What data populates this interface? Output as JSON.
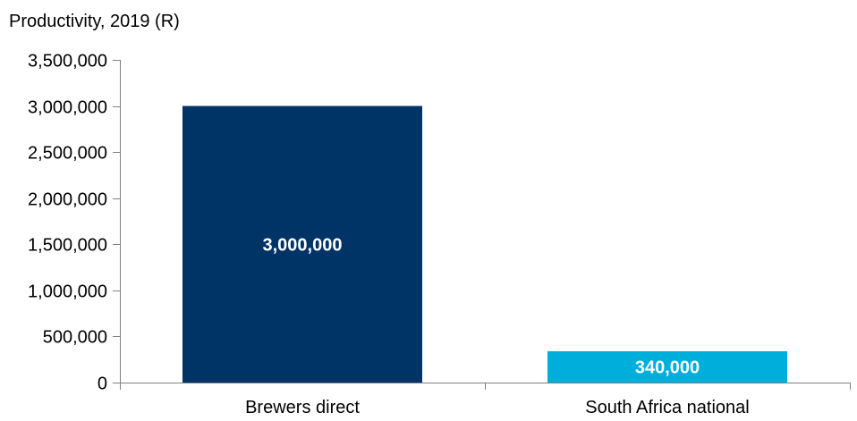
{
  "chart_data": {
    "type": "bar",
    "title": "Productivity, 2019 (R)",
    "xlabel": "",
    "ylabel": "",
    "categories": [
      "Brewers direct",
      "South Africa national"
    ],
    "values": [
      3000000,
      340000
    ],
    "value_labels": [
      "3,000,000",
      "340,000"
    ],
    "bar_colors": [
      "#003366",
      "#00aedb"
    ],
    "ylim": [
      0,
      3500000
    ],
    "yticks": [
      0,
      500000,
      1000000,
      1500000,
      2000000,
      2500000,
      3000000,
      3500000
    ],
    "ytick_labels": [
      "0",
      "500,000",
      "1,000,000",
      "1,500,000",
      "2,000,000",
      "2,500,000",
      "3,000,000",
      "3,500,000"
    ],
    "grid": false,
    "legend": "none"
  }
}
